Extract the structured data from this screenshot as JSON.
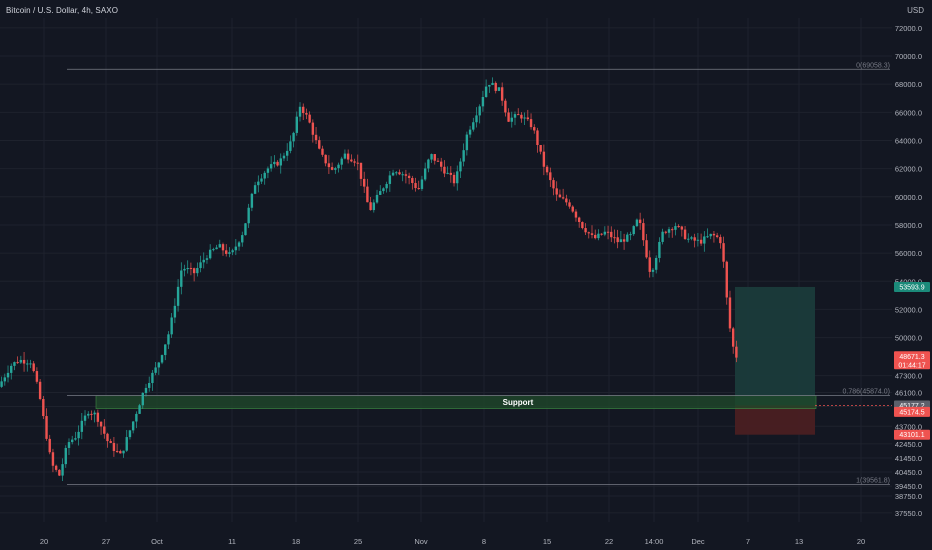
{
  "header": {
    "title": "Bitcoin / U.S. Dollar, 4h, SAXO",
    "currency": "USD"
  },
  "colors": {
    "background": "#131722",
    "grid": "#1e222d",
    "up": "#26a69a",
    "down": "#ef5350",
    "support_fill": "#1f4a2a",
    "support_border": "#4caf50",
    "target_zone": "#1a3b3b",
    "stop_zone": "#4a1f22",
    "fib_line": "#787b86"
  },
  "chart_data": {
    "type": "candlestick",
    "y_axis": {
      "min": 36900,
      "max": 72700,
      "ticks": [
        37550,
        38750,
        39450,
        40450,
        41450,
        42450,
        43700,
        45100,
        46100,
        47300,
        50000,
        52000,
        54000,
        56000,
        58000,
        60000,
        62000,
        64000,
        66000,
        68000,
        70000,
        72000
      ],
      "tick_labels": [
        "37550.0",
        "38750.0",
        "39450.0",
        "40450.0",
        "41450.0",
        "42450.0",
        "43700.0",
        "45100.0",
        "46100.0",
        "47300.0",
        "50000.0",
        "52000.0",
        "54000.0",
        "56000.0",
        "58000.0",
        "60000.0",
        "62000.0",
        "64000.0",
        "66000.0",
        "68000.0",
        "70000.0",
        "72000.0"
      ]
    },
    "x_axis": {
      "labels": [
        "20",
        "27",
        "Oct",
        "11",
        "18",
        "25",
        "Nov",
        "8",
        "15",
        "22",
        "14:00",
        "Dec",
        "7",
        "13",
        "20"
      ]
    },
    "path_points": [
      [
        0,
        46500
      ],
      [
        0.015,
        48000
      ],
      [
        0.025,
        48400
      ],
      [
        0.04,
        48300
      ],
      [
        0.05,
        46000
      ],
      [
        0.065,
        41000
      ],
      [
        0.075,
        40200
      ],
      [
        0.085,
        42500
      ],
      [
        0.095,
        43000
      ],
      [
        0.11,
        44800
      ],
      [
        0.12,
        44500
      ],
      [
        0.135,
        42500
      ],
      [
        0.15,
        41600
      ],
      [
        0.165,
        44000
      ],
      [
        0.18,
        46500
      ],
      [
        0.195,
        48000
      ],
      [
        0.21,
        50500
      ],
      [
        0.225,
        55000
      ],
      [
        0.24,
        54600
      ],
      [
        0.255,
        55800
      ],
      [
        0.27,
        56500
      ],
      [
        0.285,
        55800
      ],
      [
        0.3,
        57500
      ],
      [
        0.315,
        61000
      ],
      [
        0.33,
        62000
      ],
      [
        0.345,
        62500
      ],
      [
        0.36,
        64000
      ],
      [
        0.37,
        66500
      ],
      [
        0.38,
        65500
      ],
      [
        0.395,
        63000
      ],
      [
        0.41,
        61800
      ],
      [
        0.425,
        63000
      ],
      [
        0.44,
        62500
      ],
      [
        0.455,
        59000
      ],
      [
        0.47,
        60500
      ],
      [
        0.485,
        62000
      ],
      [
        0.5,
        61500
      ],
      [
        0.515,
        60500
      ],
      [
        0.53,
        63000
      ],
      [
        0.545,
        62000
      ],
      [
        0.56,
        61000
      ],
      [
        0.575,
        64500
      ],
      [
        0.59,
        66500
      ],
      [
        0.6,
        68200
      ],
      [
        0.615,
        67500
      ],
      [
        0.625,
        65500
      ],
      [
        0.64,
        65800
      ],
      [
        0.655,
        65000
      ],
      [
        0.67,
        62000
      ],
      [
        0.685,
        60000
      ],
      [
        0.7,
        59500
      ],
      [
        0.715,
        58000
      ],
      [
        0.73,
        57000
      ],
      [
        0.745,
        57500
      ],
      [
        0.76,
        56800
      ],
      [
        0.775,
        57200
      ],
      [
        0.785,
        58500
      ],
      [
        0.8,
        54500
      ],
      [
        0.815,
        57500
      ],
      [
        0.83,
        58000
      ],
      [
        0.845,
        57000
      ],
      [
        0.86,
        56800
      ],
      [
        0.875,
        57300
      ],
      [
        0.885,
        57000
      ],
      [
        0.89,
        55000
      ],
      [
        0.895,
        51500
      ],
      [
        0.9,
        49500
      ],
      [
        0.905,
        48671
      ]
    ],
    "candle_count": 230,
    "levels": {
      "fib_0": {
        "label": "0(69058.3)",
        "value": 69058.3
      },
      "fib_786": {
        "label": "0.786(45874.0)",
        "value": 45874.0
      },
      "fib_1": {
        "label": "1(39561.8)",
        "value": 39561.8
      },
      "support_top": 45874.0,
      "support_bottom": 44950.0,
      "support_label": "Support",
      "target": {
        "label": "53593.9",
        "value": 53593.9
      },
      "entry": {
        "label": "45177.2",
        "value": 45177.2
      },
      "stop_price": {
        "label": "45174.5",
        "value": 45174.5
      },
      "stop": {
        "label": "43101.1",
        "value": 43101.1
      },
      "last": {
        "label": "48671.3",
        "value": 48671.3,
        "countdown": "01:44:17"
      }
    }
  }
}
